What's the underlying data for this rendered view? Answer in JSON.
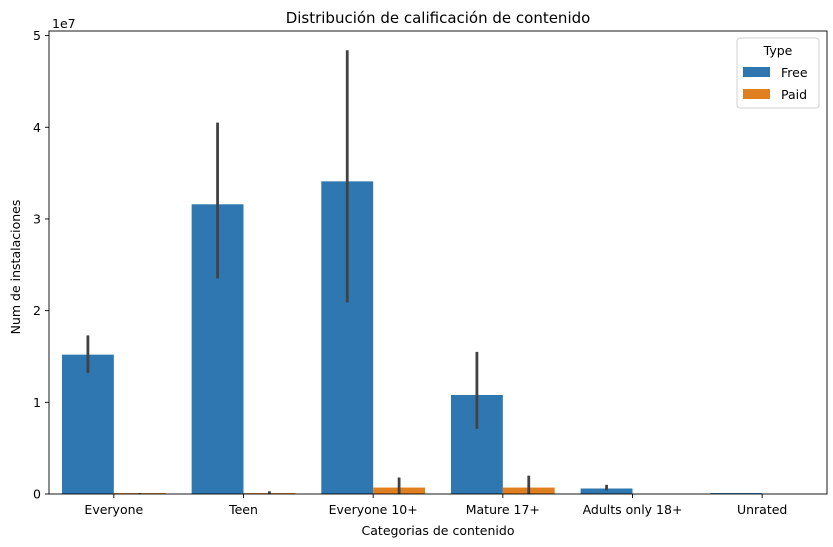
{
  "chart_data": {
    "type": "bar",
    "title": "Distribución de calificación de contenido",
    "xlabel": "Categorias de contenido",
    "ylabel": "Num de instalaciones",
    "y_scale_label": "1e7",
    "y_scale": 10000000,
    "ylim": [
      0,
      5.0
    ],
    "y_ticks": [
      "0",
      "1",
      "2",
      "3",
      "4",
      "5"
    ],
    "categories": [
      "Everyone",
      "Teen",
      "Everyone 10+",
      "Mature 17+",
      "Adults only 18+",
      "Unrated"
    ],
    "legend": {
      "title": "Type",
      "position": "top-right"
    },
    "series": [
      {
        "name": "Free",
        "color": "#2e77b0",
        "values": [
          1.52,
          3.16,
          3.41,
          1.08,
          0.06,
          0.01
        ],
        "error_low": [
          1.32,
          2.35,
          2.09,
          0.71,
          0.04,
          null
        ],
        "error_high": [
          1.73,
          4.05,
          4.84,
          1.55,
          0.1,
          null
        ]
      },
      {
        "name": "Paid",
        "color": "#e07f20",
        "values": [
          0.01,
          0.01,
          0.07,
          0.07,
          null,
          null
        ],
        "error_low": [
          0.0,
          0.0,
          0.0,
          0.0,
          null,
          null
        ],
        "error_high": [
          0.01,
          0.03,
          0.18,
          0.2,
          null,
          null
        ]
      }
    ],
    "grid": false
  }
}
